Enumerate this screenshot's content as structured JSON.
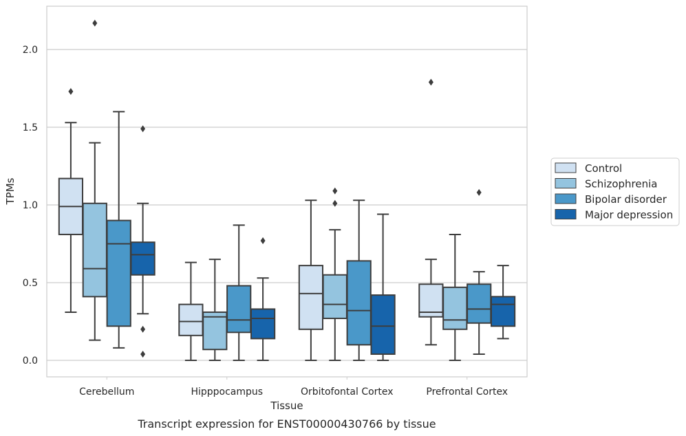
{
  "caption": "Transcript expression for ENST00000430766 by tissue",
  "chart_data": {
    "type": "boxplot",
    "xlabel": "Tissue",
    "ylabel": "TPMs",
    "ylim": [
      -0.1,
      2.3
    ],
    "yticks": [
      0.0,
      0.5,
      1.0,
      1.5,
      2.0
    ],
    "ytick_labels": [
      "0.0",
      "0.5",
      "1.0",
      "1.5",
      "2.0"
    ],
    "grid": "horizontal",
    "legend_position": "right",
    "categories": [
      "Cerebellum",
      "Hipppocampus",
      "Orbitofontal Cortex",
      "Prefrontal Cortex"
    ],
    "series": [
      {
        "name": "Control",
        "color": "#d0e1f2",
        "boxes": [
          {
            "whislo": 0.31,
            "q1": 0.81,
            "med": 0.99,
            "q3": 1.17,
            "whishi": 1.53,
            "fliers": [
              1.73
            ]
          },
          {
            "whislo": 0.0,
            "q1": 0.16,
            "med": 0.25,
            "q3": 0.36,
            "whishi": 0.63,
            "fliers": []
          },
          {
            "whislo": 0.0,
            "q1": 0.2,
            "med": 0.43,
            "q3": 0.61,
            "whishi": 1.03,
            "fliers": []
          },
          {
            "whislo": 0.1,
            "q1": 0.28,
            "med": 0.31,
            "q3": 0.49,
            "whishi": 0.65,
            "fliers": [
              1.79
            ]
          }
        ]
      },
      {
        "name": "Schizophrenia",
        "color": "#94c4df",
        "boxes": [
          {
            "whislo": 0.13,
            "q1": 0.41,
            "med": 0.59,
            "q3": 1.01,
            "whishi": 1.4,
            "fliers": [
              2.17
            ]
          },
          {
            "whislo": 0.0,
            "q1": 0.07,
            "med": 0.28,
            "q3": 0.31,
            "whishi": 0.65,
            "fliers": []
          },
          {
            "whislo": 0.0,
            "q1": 0.27,
            "med": 0.36,
            "q3": 0.55,
            "whishi": 0.84,
            "fliers": [
              1.01,
              1.09
            ]
          },
          {
            "whislo": 0.0,
            "q1": 0.2,
            "med": 0.26,
            "q3": 0.47,
            "whishi": 0.81,
            "fliers": []
          }
        ]
      },
      {
        "name": "Bipolar disorder",
        "color": "#4a98c9",
        "boxes": [
          {
            "whislo": 0.08,
            "q1": 0.22,
            "med": 0.75,
            "q3": 0.9,
            "whishi": 1.6,
            "fliers": []
          },
          {
            "whislo": 0.0,
            "q1": 0.18,
            "med": 0.26,
            "q3": 0.48,
            "whishi": 0.87,
            "fliers": []
          },
          {
            "whislo": 0.0,
            "q1": 0.1,
            "med": 0.32,
            "q3": 0.64,
            "whishi": 1.03,
            "fliers": []
          },
          {
            "whislo": 0.04,
            "q1": 0.24,
            "med": 0.33,
            "q3": 0.49,
            "whishi": 0.57,
            "fliers": [
              1.08
            ]
          }
        ]
      },
      {
        "name": "Major depression",
        "color": "#1764ab",
        "boxes": [
          {
            "whislo": 0.3,
            "q1": 0.55,
            "med": 0.68,
            "q3": 0.76,
            "whishi": 1.01,
            "fliers": [
              1.49,
              0.2,
              0.04
            ]
          },
          {
            "whislo": 0.0,
            "q1": 0.14,
            "med": 0.27,
            "q3": 0.33,
            "whishi": 0.53,
            "fliers": [
              0.77
            ]
          },
          {
            "whislo": 0.0,
            "q1": 0.04,
            "med": 0.22,
            "q3": 0.42,
            "whishi": 0.94,
            "fliers": []
          },
          {
            "whislo": 0.14,
            "q1": 0.22,
            "med": 0.36,
            "q3": 0.41,
            "whishi": 0.61,
            "fliers": []
          }
        ]
      }
    ]
  }
}
